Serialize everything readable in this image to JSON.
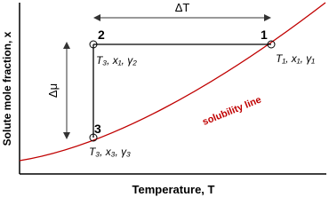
{
  "axes": {
    "x_label": "Temperature, T",
    "y_label": "Solute mole fraction, x"
  },
  "annotations": {
    "delta_t": "ΔT",
    "delta_mu": "Δμ",
    "curve_label": "solubility line"
  },
  "points": [
    {
      "id": "1",
      "label": "T₁, x₁, γ₁"
    },
    {
      "id": "2",
      "label": "T₃, x₁, γ₂"
    },
    {
      "id": "3",
      "label": "T₃, x₃, γ₃"
    }
  ]
}
